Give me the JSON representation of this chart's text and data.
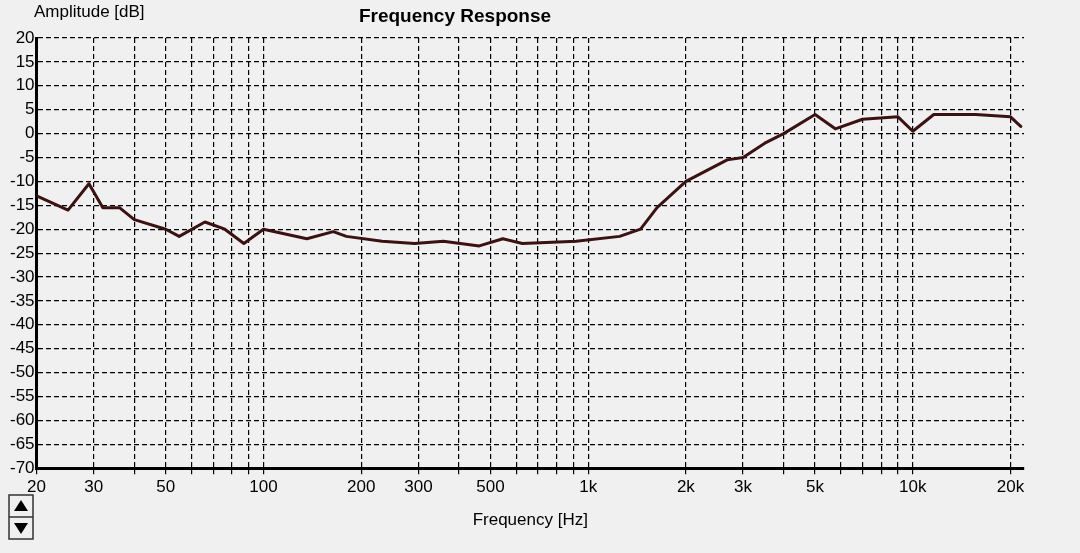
{
  "chart_data": {
    "type": "line",
    "title": "Frequency Response",
    "xlabel": "Frequency [Hz]",
    "ylabel": "Amplitude [dB]",
    "log": "x",
    "grid": true,
    "legend": false,
    "marker": "none",
    "line_style": "solid",
    "xlim": [
      20,
      22000
    ],
    "ylim": [
      -70,
      20
    ],
    "xticks": [
      20,
      30,
      {
        "value": 40,
        "label": null
      },
      50,
      {
        "value": 60,
        "label": null
      },
      {
        "value": 70,
        "label": null
      },
      {
        "value": 80,
        "label": null
      },
      {
        "value": 90,
        "label": null
      },
      100,
      200,
      300,
      {
        "value": 400,
        "label": null
      },
      500,
      {
        "value": 600,
        "label": null
      },
      {
        "value": 700,
        "label": null
      },
      {
        "value": 800,
        "label": null
      },
      {
        "value": 900,
        "label": null
      },
      {
        "value": 1000,
        "label": "1k"
      },
      {
        "value": 2000,
        "label": "2k"
      },
      {
        "value": 3000,
        "label": "3k"
      },
      {
        "value": 4000,
        "label": null
      },
      {
        "value": 5000,
        "label": "5k"
      },
      {
        "value": 6000,
        "label": null
      },
      {
        "value": 7000,
        "label": null
      },
      {
        "value": 8000,
        "label": null
      },
      {
        "value": 9000,
        "label": null
      },
      {
        "value": 10000,
        "label": "10k"
      },
      {
        "value": 20000,
        "label": "20k"
      }
    ],
    "yticks": [
      -70,
      -65,
      -60,
      -55,
      -50,
      -45,
      -40,
      -35,
      -30,
      -25,
      -20,
      -15,
      -10,
      -5,
      0,
      5,
      10,
      15,
      20
    ],
    "x": [
      20,
      25,
      29,
      32,
      36,
      40,
      50,
      55,
      66,
      76,
      87,
      100,
      136,
      164,
      180,
      232,
      292,
      358,
      462,
      546,
      627,
      918,
      1250,
      1450,
      1630,
      2000,
      2680,
      3000,
      3500,
      4000,
      5000,
      5770,
      7000,
      9000,
      10000,
      11600,
      15600,
      20000,
      21500
    ],
    "series": [
      {
        "color": "#3a1212",
        "values": [
          -13,
          -16,
          -10.5,
          -15.5,
          -15.5,
          -18,
          -20,
          -21.5,
          -18.5,
          -20,
          -23,
          -20,
          -22,
          -20.5,
          -21.5,
          -22.5,
          -23,
          -22.5,
          -23.5,
          -22,
          -23,
          -22.5,
          -21.5,
          -20,
          -15.5,
          -10,
          -5.5,
          -5,
          -2,
          0,
          4,
          1,
          3,
          3.5,
          0.5,
          4,
          4,
          3.5,
          1.5
        ]
      }
    ]
  }
}
